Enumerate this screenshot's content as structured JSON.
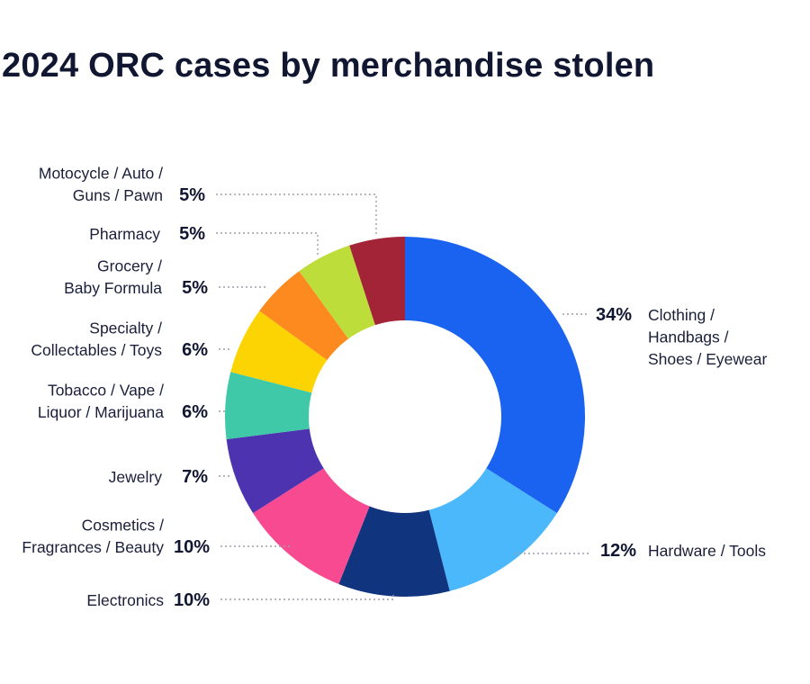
{
  "chart_data": {
    "type": "pie",
    "title": "2024 ORC cases by merchandise stolen",
    "slices": [
      {
        "label": "Clothing / Handbags / Shoes / Eyewear",
        "label_lines": [
          "Clothing /",
          "Handbags /",
          "Shoes / Eyewear"
        ],
        "value": 34,
        "value_label": "34%",
        "color": "#1a63f0"
      },
      {
        "label": "Hardware / Tools",
        "label_lines": [
          "Hardware / Tools"
        ],
        "value": 12,
        "value_label": "12%",
        "color": "#4bb8fb"
      },
      {
        "label": "Electronics",
        "label_lines": [
          "Electronics"
        ],
        "value": 10,
        "value_label": "10%",
        "color": "#11347f"
      },
      {
        "label": "Cosmetics / Fragrances / Beauty",
        "label_lines": [
          "Cosmetics /",
          "Fragrances / Beauty"
        ],
        "value": 10,
        "value_label": "10%",
        "color": "#f74a91"
      },
      {
        "label": "Jewelry",
        "label_lines": [
          "Jewelry"
        ],
        "value": 7,
        "value_label": "7%",
        "color": "#4e33b0"
      },
      {
        "label": "Tobacco / Vape / Liquor / Marijuana",
        "label_lines": [
          "Tobacco / Vape /",
          "Liquor / Marijuana"
        ],
        "value": 6,
        "value_label": "6%",
        "color": "#40c9a8"
      },
      {
        "label": "Specialty / Collectables / Toys",
        "label_lines": [
          "Specialty /",
          "Collectables / Toys"
        ],
        "value": 6,
        "value_label": "6%",
        "color": "#fdd403"
      },
      {
        "label": "Grocery / Baby Formula",
        "label_lines": [
          "Grocery /",
          "Baby Formula"
        ],
        "value": 5,
        "value_label": "5%",
        "color": "#fd8a1e"
      },
      {
        "label": "Pharmacy",
        "label_lines": [
          "Pharmacy"
        ],
        "value": 5,
        "value_label": "5%",
        "color": "#bddd3a"
      },
      {
        "label": "Motocycle / Auto / Guns / Pawn",
        "label_lines": [
          "Motocycle / Auto /",
          "Guns / Pawn"
        ],
        "value": 5,
        "value_label": "5%",
        "color": "#a22436"
      }
    ],
    "start": "top",
    "direction": "clockwise",
    "legend": "none"
  }
}
